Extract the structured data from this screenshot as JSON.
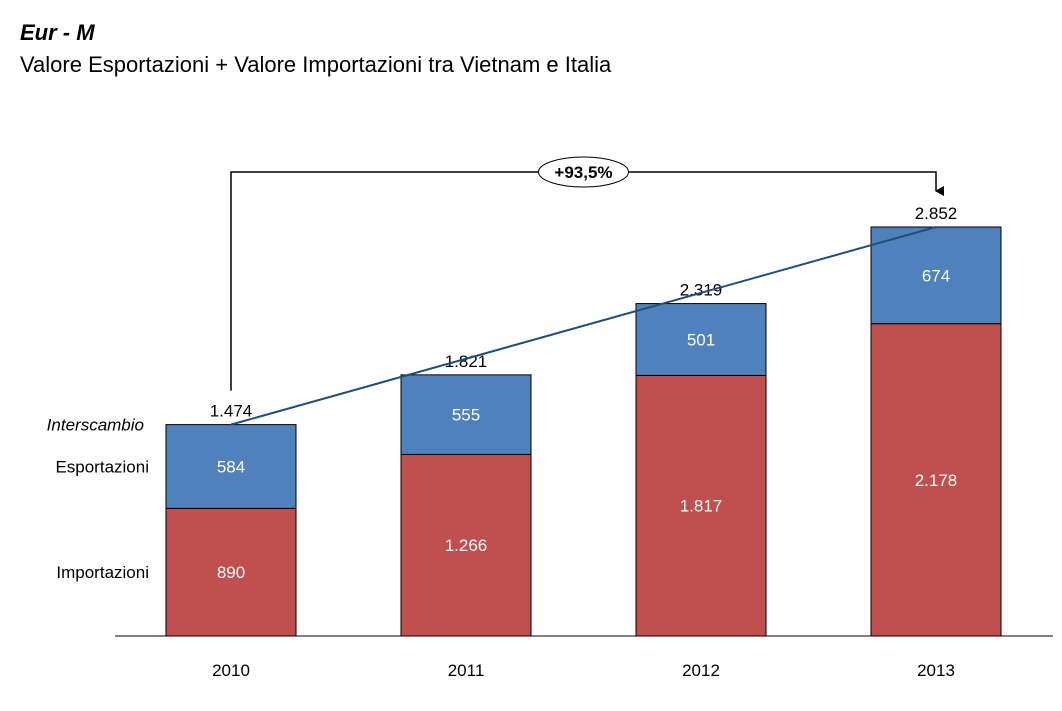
{
  "title_unit": "Eur  - M",
  "title": "Valore Esportazioni + Valore Importazioni tra Vietnam e Italia",
  "chart_data": {
    "type": "bar",
    "stacked": true,
    "categories": [
      "2010",
      "2011",
      "2012",
      "2013"
    ],
    "series": [
      {
        "name": "Importazioni",
        "values": [
          890,
          1266,
          1817,
          2178
        ],
        "labels": [
          "890",
          "1.266",
          "1.817",
          "2.178"
        ],
        "color": "#c0504d"
      },
      {
        "name": "Esportazioni",
        "values": [
          584,
          555,
          501,
          674
        ],
        "labels": [
          "584",
          "555",
          "501",
          "674"
        ],
        "color": "#4f81bd"
      }
    ],
    "totals": {
      "name": "Interscambio",
      "values": [
        1474,
        1821,
        2319,
        2852
      ],
      "labels": [
        "1.474",
        "1.821",
        "2.319",
        "2.852"
      ]
    },
    "trend_line_color": "#1f4e79",
    "growth_annotation": "+93,5%",
    "ylim": [
      0,
      2852
    ],
    "grid": false,
    "legend": "left"
  }
}
